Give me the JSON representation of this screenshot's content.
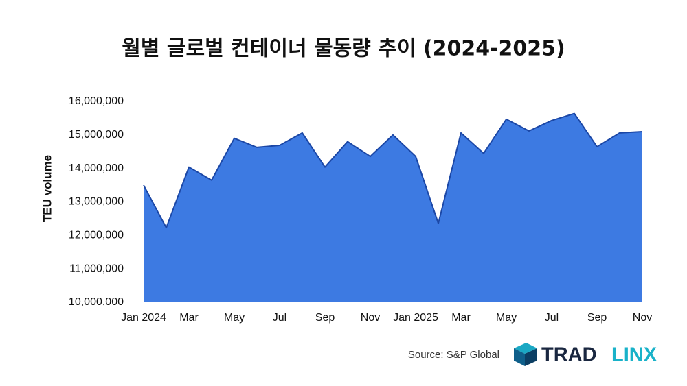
{
  "chart_data": {
    "type": "area",
    "title": "월별 글로벌 컨테이너 물동량 추이 (2024-2025)",
    "y_label": "TEU volume",
    "categories": [
      "Jan 2024",
      null,
      "Mar",
      null,
      "May",
      null,
      "Jul",
      null,
      "Sep",
      null,
      "Nov",
      null,
      "Jan 2025",
      null,
      "Mar",
      null,
      "May",
      null,
      "Jul",
      null,
      "Sep",
      null,
      "Nov"
    ],
    "series": [
      {
        "name": "TEU volume",
        "color": "#3d7ae2",
        "line_color": "#1b47a6",
        "values": [
          13500000,
          12230000,
          14040000,
          13650000,
          14900000,
          14630000,
          14690000,
          15060000,
          14040000,
          14800000,
          14360000,
          15000000,
          14360000,
          12360000,
          15060000,
          14450000,
          15470000,
          15120000,
          15430000,
          15640000,
          14650000,
          15060000,
          15100000
        ]
      }
    ],
    "ylim": [
      10000000,
      16000000
    ],
    "yticks": [
      {
        "value": 10000000,
        "label": "10,000,000"
      },
      {
        "value": 11000000,
        "label": "11,000,000"
      },
      {
        "value": 12000000,
        "label": "12,000,000"
      },
      {
        "value": 13000000,
        "label": "13,000,000"
      },
      {
        "value": 14000000,
        "label": "14,000,000"
      },
      {
        "value": 15000000,
        "label": "15,000,000"
      },
      {
        "value": 16000000,
        "label": "16,000,000"
      }
    ],
    "grid": false,
    "source": "Source: S&P Global",
    "brand": [
      "TRAD",
      "LINX"
    ]
  }
}
